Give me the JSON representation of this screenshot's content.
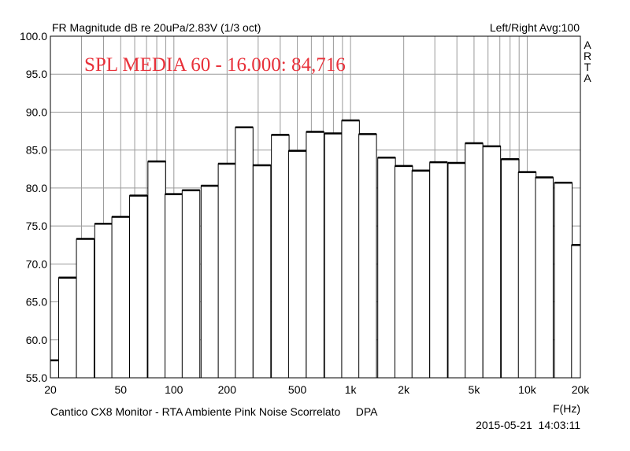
{
  "header": {
    "title": "FR Magnitude dB re 20uPa/2.83V (1/3 oct)",
    "right_info": "Left/Right  Avg:100"
  },
  "brand": "ARTA",
  "footer": {
    "caption": "Cantico CX8 Monitor - RTA Ambiente Pink Noise Scorrelato     DPA",
    "timestamp": "2015-05-21  14:03:11"
  },
  "chart_data": {
    "type": "bar",
    "title": "FR Magnitude dB re 20uPa/2.83V (1/3 oct)",
    "xlabel": "F(Hz)",
    "ylabel": "",
    "x_scale": "log",
    "xlim": [
      20,
      20000
    ],
    "ylim": [
      55,
      100
    ],
    "grid": true,
    "bar_color": "#ffffff",
    "annotation": {
      "text": "SPL MEDIA 60 - 16.000: 84,716",
      "color": "#e8313a"
    },
    "x_tick_labels": [
      "20",
      "50",
      "100",
      "200",
      "500",
      "1k",
      "2k",
      "5k",
      "10k",
      "20k"
    ],
    "x_tick_values": [
      20,
      50,
      100,
      200,
      500,
      1000,
      2000,
      5000,
      10000,
      20000
    ],
    "y_tick_labels": [
      "100.0",
      "95.0",
      "90.0",
      "85.0",
      "80.0",
      "75.0",
      "70.0",
      "65.0",
      "60.0",
      "55.0"
    ],
    "y_tick_values": [
      100,
      95,
      90,
      85,
      80,
      75,
      70,
      65,
      60,
      55
    ],
    "bands": [
      {
        "fc": 20,
        "value": 57.3
      },
      {
        "fc": 25,
        "value": 68.2
      },
      {
        "fc": 31.5,
        "value": 73.3
      },
      {
        "fc": 40,
        "value": 75.3
      },
      {
        "fc": 50,
        "value": 76.2
      },
      {
        "fc": 63,
        "value": 79.0
      },
      {
        "fc": 80,
        "value": 83.5
      },
      {
        "fc": 100,
        "value": 79.2
      },
      {
        "fc": 125,
        "value": 79.7
      },
      {
        "fc": 160,
        "value": 80.3
      },
      {
        "fc": 200,
        "value": 83.2
      },
      {
        "fc": 250,
        "value": 88.0
      },
      {
        "fc": 315,
        "value": 83.0
      },
      {
        "fc": 400,
        "value": 87.0
      },
      {
        "fc": 500,
        "value": 84.9
      },
      {
        "fc": 630,
        "value": 87.4
      },
      {
        "fc": 800,
        "value": 87.2
      },
      {
        "fc": 1000,
        "value": 88.9
      },
      {
        "fc": 1250,
        "value": 87.1
      },
      {
        "fc": 1600,
        "value": 84.0
      },
      {
        "fc": 2000,
        "value": 82.9
      },
      {
        "fc": 2500,
        "value": 82.3
      },
      {
        "fc": 3150,
        "value": 83.4
      },
      {
        "fc": 4000,
        "value": 83.3
      },
      {
        "fc": 5000,
        "value": 85.9
      },
      {
        "fc": 6300,
        "value": 85.5
      },
      {
        "fc": 8000,
        "value": 83.8
      },
      {
        "fc": 10000,
        "value": 82.1
      },
      {
        "fc": 12500,
        "value": 81.4
      },
      {
        "fc": 16000,
        "value": 80.7
      },
      {
        "fc": 20000,
        "value": 72.5
      }
    ]
  }
}
